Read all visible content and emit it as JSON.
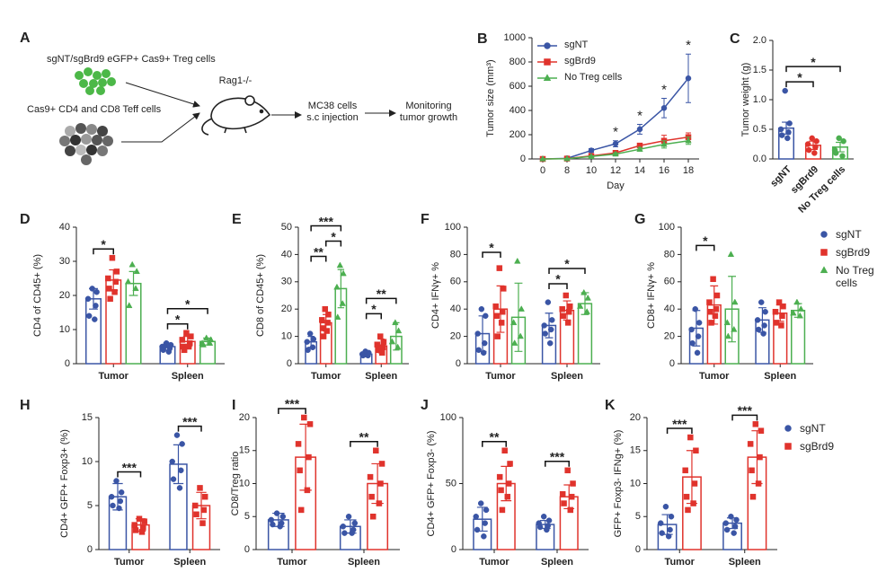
{
  "diagram": {
    "panel": "A",
    "treg": "sgNT/sgBrd9 eGFP+ Cas9+ Treg cells",
    "teff": "Cas9+ CD4 and CD8 Teff cells",
    "host": "Rag1-/-",
    "injection": [
      "MC38 cells",
      "s.c injection"
    ],
    "readout": [
      "Monitoring",
      "tumor growth"
    ]
  },
  "chart_data": [
    {
      "panel": "B",
      "type": "line",
      "ylabel": "Tumor size (mm³)",
      "xlabel": "Day",
      "categories": [
        "0",
        "8",
        "10",
        "12",
        "14",
        "16",
        "18"
      ],
      "ylim": [
        0,
        1000
      ],
      "yticks": [
        0,
        200,
        400,
        600,
        800,
        1000
      ],
      "legend": "upper left",
      "series": [
        {
          "name": "sgNT",
          "color": "#3a55a5",
          "marker": "circle",
          "values": [
            0,
            5,
            70,
            125,
            245,
            420,
            665
          ],
          "errors": [
            0,
            5,
            15,
            25,
            40,
            80,
            200
          ]
        },
        {
          "name": "sgBrd9",
          "color": "#e0332c",
          "marker": "square",
          "values": [
            0,
            3,
            25,
            50,
            110,
            150,
            180
          ],
          "errors": [
            0,
            3,
            8,
            10,
            20,
            45,
            35
          ]
        },
        {
          "name": "No Treg cells",
          "color": "#4caf50",
          "marker": "triangle",
          "values": [
            0,
            2,
            20,
            40,
            80,
            120,
            150
          ],
          "errors": [
            0,
            2,
            6,
            10,
            15,
            30,
            30
          ]
        }
      ],
      "annotations": [
        {
          "category": "12",
          "label": "*"
        },
        {
          "category": "14",
          "label": "*"
        },
        {
          "category": "16",
          "label": "*"
        },
        {
          "category": "18",
          "label": "*"
        }
      ]
    },
    {
      "panel": "C",
      "type": "bar",
      "ylabel": "Tumor weight (g)",
      "categories": [
        "sgNT",
        "sgBrd9",
        "No Treg cells"
      ],
      "colors": [
        "#3a55a5",
        "#e0332c",
        "#4caf50"
      ],
      "ylim": [
        0,
        2
      ],
      "yticks": [
        {
          "value": 0,
          "label": "0.0"
        },
        {
          "value": 0.5,
          "label": "0.5"
        },
        {
          "value": 1,
          "label": "1.0"
        },
        {
          "value": 1.5,
          "label": "1.5"
        },
        {
          "value": 2,
          "label": "2.0"
        }
      ],
      "values": [
        0.52,
        0.23,
        0.2
      ],
      "errors": [
        0.1,
        0.07,
        0.08
      ],
      "points": [
        [
          1.15,
          0.6,
          0.5,
          0.45,
          0.4,
          0.35
        ],
        [
          0.35,
          0.3,
          0.25,
          0.2,
          0.15,
          0.1
        ],
        [
          0.35,
          0.3,
          0.15,
          0.05,
          0.1
        ]
      ],
      "brackets": [
        {
          "from": "sgNT",
          "to": "sgBrd9",
          "label": "*"
        },
        {
          "from": "sgNT",
          "to": "No Treg cells",
          "label": "*"
        }
      ]
    },
    {
      "panel": "D",
      "type": "bar",
      "ylabel": "CD4 of CD45+ (%)",
      "categories": [
        "Tumor",
        "Spleen"
      ],
      "ylim": [
        0,
        40
      ],
      "yticks": [
        0,
        10,
        20,
        30,
        40
      ],
      "series": [
        {
          "name": "sgNT",
          "color": "#3a55a5",
          "marker": "circle",
          "values": [
            19,
            5
          ],
          "errors": [
            3,
            1
          ],
          "points": [
            [
              22,
              21,
              19,
              17,
              14,
              13
            ],
            [
              6,
              5.5,
              5,
              4.5,
              4,
              3.5,
              5
            ]
          ]
        },
        {
          "name": "sgBrd9",
          "color": "#e0332c",
          "marker": "square",
          "values": [
            24.5,
            6.5
          ],
          "errors": [
            3,
            1.5
          ],
          "points": [
            [
              31,
              27,
              25,
              24,
              22,
              21,
              19
            ],
            [
              9,
              8,
              7,
              6,
              5,
              5,
              4
            ]
          ]
        },
        {
          "name": "No Treg cells",
          "color": "#4caf50",
          "marker": "triangle",
          "values": [
            23.5,
            6.5
          ],
          "errors": [
            3.5,
            1
          ],
          "points": [
            [
              29,
              27,
              24,
              22,
              17
            ],
            [
              7.5,
              7,
              6,
              6,
              5.5
            ]
          ]
        }
      ],
      "brackets": [
        {
          "category": "Tumor",
          "from": "sgNT",
          "to": "sgBrd9",
          "label": "*"
        },
        {
          "category": "Spleen",
          "from": "sgNT",
          "to": "sgBrd9",
          "label": "*"
        },
        {
          "category": "Spleen",
          "from": "sgNT",
          "to": "No Treg cells",
          "label": "*"
        }
      ]
    },
    {
      "panel": "E",
      "type": "bar",
      "ylabel": "CD8 of CD45+ (%)",
      "categories": [
        "Tumor",
        "Spleen"
      ],
      "ylim": [
        0,
        50
      ],
      "yticks": [
        0,
        10,
        20,
        30,
        40,
        50
      ],
      "series": [
        {
          "name": "sgNT",
          "color": "#3a55a5",
          "marker": "circle",
          "values": [
            8,
            3.5
          ],
          "errors": [
            2,
            1
          ],
          "points": [
            [
              11,
              9,
              8,
              6,
              5
            ],
            [
              4.5,
              4,
              3.5,
              3,
              3
            ]
          ]
        },
        {
          "name": "sgBrd9",
          "color": "#e0332c",
          "marker": "square",
          "values": [
            15,
            6.5
          ],
          "errors": [
            3,
            2.5
          ],
          "points": [
            [
              20,
              18,
              16,
              15,
              13,
              12,
              10
            ],
            [
              10,
              8,
              7,
              6,
              5,
              4
            ]
          ]
        },
        {
          "name": "No Treg cells",
          "color": "#4caf50",
          "marker": "triangle",
          "values": [
            27.5,
            10
          ],
          "errors": [
            7,
            5
          ],
          "points": [
            [
              36,
              33,
              28,
              22,
              17
            ],
            [
              15,
              12,
              8,
              6
            ]
          ]
        }
      ],
      "brackets": [
        {
          "category": "Tumor",
          "from": "sgNT",
          "to": "sgBrd9",
          "label": "**"
        },
        {
          "category": "Tumor",
          "from": "sgBrd9",
          "to": "No Treg cells",
          "label": "*"
        },
        {
          "category": "Tumor",
          "from": "sgNT",
          "to": "No Treg cells",
          "label": "***"
        },
        {
          "category": "Spleen",
          "from": "sgNT",
          "to": "sgBrd9",
          "label": "*"
        },
        {
          "category": "Spleen",
          "from": "sgNT",
          "to": "No Treg cells",
          "label": "**"
        }
      ]
    },
    {
      "panel": "F",
      "type": "bar",
      "ylabel": "CD4+ IFNγ+ %",
      "categories": [
        "Tumor",
        "Spleen"
      ],
      "ylim": [
        0,
        100
      ],
      "yticks": [
        0,
        20,
        40,
        60,
        80,
        100
      ],
      "series": [
        {
          "name": "sgNT",
          "color": "#3a55a5",
          "marker": "circle",
          "values": [
            22,
            28
          ],
          "errors": [
            13,
            9
          ],
          "points": [
            [
              40,
              35,
              22,
              15,
              10,
              8
            ],
            [
              45,
              32,
              28,
              25,
              22,
              15
            ]
          ]
        },
        {
          "name": "sgBrd9",
          "color": "#e0332c",
          "marker": "square",
          "values": [
            40,
            39
          ],
          "errors": [
            17,
            7
          ],
          "points": [
            [
              70,
              55,
              42,
              38,
              35,
              30,
              20
            ],
            [
              50,
              42,
              40,
              38,
              35,
              30
            ]
          ]
        },
        {
          "name": "No Treg cells",
          "color": "#4caf50",
          "marker": "triangle",
          "values": [
            34,
            44
          ],
          "errors": [
            25,
            8
          ],
          "points": [
            [
              75,
              40,
              30,
              20,
              15
            ],
            [
              52,
              48,
              42,
              38
            ]
          ]
        }
      ],
      "brackets": [
        {
          "category": "Tumor",
          "from": "sgNT",
          "to": "sgBrd9",
          "label": "*"
        },
        {
          "category": "Spleen",
          "from": "sgNT",
          "to": "sgBrd9",
          "label": "*"
        },
        {
          "category": "Spleen",
          "from": "sgNT",
          "to": "No Treg cells",
          "label": "*"
        }
      ]
    },
    {
      "panel": "G",
      "type": "bar",
      "ylabel": "CD8+ IFNγ+ %",
      "categories": [
        "Tumor",
        "Spleen"
      ],
      "ylim": [
        0,
        100
      ],
      "yticks": [
        0,
        20,
        40,
        60,
        80,
        100
      ],
      "legend": "right",
      "series": [
        {
          "name": "sgNT",
          "color": "#3a55a5",
          "marker": "circle",
          "values": [
            26,
            32
          ],
          "errors": [
            13,
            9
          ],
          "points": [
            [
              40,
              30,
              25,
              20,
              15,
              8
            ],
            [
              45,
              38,
              32,
              28,
              25,
              22
            ]
          ]
        },
        {
          "name": "sgBrd9",
          "color": "#e0332c",
          "marker": "square",
          "values": [
            43,
            37
          ],
          "errors": [
            14,
            6
          ],
          "points": [
            [
              62,
              50,
              45,
              40,
              38,
              35,
              30
            ],
            [
              45,
              42,
              38,
              35,
              30,
              28
            ]
          ]
        },
        {
          "name": "No Treg cells",
          "color": "#4caf50",
          "marker": "triangle",
          "values": [
            40,
            39
          ],
          "errors": [
            24,
            5
          ],
          "points": [
            [
              80,
              45,
              30,
              25,
              20
            ],
            [
              45,
              40,
              37,
              35
            ]
          ]
        }
      ],
      "brackets": [
        {
          "category": "Tumor",
          "from": "sgNT",
          "to": "sgBrd9",
          "label": "*"
        }
      ]
    },
    {
      "panel": "H",
      "type": "bar",
      "ylabel": "CD4+ GFP+ Foxp3+ (%)",
      "categories": [
        "Tumor",
        "Spleen"
      ],
      "ylim": [
        0,
        15
      ],
      "yticks": [
        0,
        5,
        10,
        15
      ],
      "series": [
        {
          "name": "sgNT",
          "color": "#3a55a5",
          "marker": "circle",
          "values": [
            6,
            9.7
          ],
          "errors": [
            1.5,
            2.2
          ],
          "points": [
            [
              7.8,
              6.5,
              6,
              5.5,
              5,
              4.7
            ],
            [
              13,
              12,
              10,
              9,
              8,
              7
            ]
          ]
        },
        {
          "name": "sgBrd9",
          "color": "#e0332c",
          "marker": "square",
          "values": [
            2.8,
            5
          ],
          "errors": [
            0.7,
            1.5
          ],
          "points": [
            [
              3.5,
              3.2,
              2.8,
              2.5,
              2.2,
              2
            ],
            [
              7,
              6,
              5,
              4.5,
              4,
              3
            ]
          ]
        }
      ],
      "brackets": [
        {
          "category": "Tumor",
          "from": "sgNT",
          "to": "sgBrd9",
          "label": "***"
        },
        {
          "category": "Spleen",
          "from": "sgNT",
          "to": "sgBrd9",
          "label": "***"
        }
      ]
    },
    {
      "panel": "I",
      "type": "bar",
      "ylabel": "CD8/Treg ratio",
      "categories": [
        "Tumor",
        "Spleen"
      ],
      "ylim": [
        0,
        20
      ],
      "yticks": [
        0,
        5,
        10,
        15,
        20
      ],
      "series": [
        {
          "name": "sgNT",
          "color": "#3a55a5",
          "marker": "circle",
          "values": [
            4.5,
            3.5
          ],
          "errors": [
            1,
            1
          ],
          "points": [
            [
              5.5,
              5,
              4.5,
              4,
              3.8,
              3.5
            ],
            [
              5,
              4,
              3.5,
              3,
              2.5,
              2.5
            ]
          ]
        },
        {
          "name": "sgBrd9",
          "color": "#e0332c",
          "marker": "square",
          "values": [
            14,
            10
          ],
          "errors": [
            5,
            3
          ],
          "points": [
            [
              20,
              19,
              16,
              14,
              12,
              9,
              6
            ],
            [
              15,
              13,
              11,
              10,
              8,
              7,
              5
            ]
          ]
        }
      ],
      "brackets": [
        {
          "category": "Tumor",
          "from": "sgNT",
          "to": "sgBrd9",
          "label": "***"
        },
        {
          "category": "Spleen",
          "from": "sgNT",
          "to": "sgBrd9",
          "label": "**"
        }
      ]
    },
    {
      "panel": "J",
      "type": "bar",
      "ylabel": "CD4+ GFP+ Foxp3- (%)",
      "categories": [
        "Tumor",
        "Spleen"
      ],
      "ylim": [
        0,
        100
      ],
      "yticks": [
        0,
        50,
        100
      ],
      "series": [
        {
          "name": "sgNT",
          "color": "#3a55a5",
          "marker": "circle",
          "values": [
            23,
            19
          ],
          "errors": [
            9,
            3
          ],
          "points": [
            [
              35,
              30,
              25,
              20,
              15,
              10
            ],
            [
              25,
              22,
              20,
              18,
              17,
              15
            ]
          ]
        },
        {
          "name": "sgBrd9",
          "color": "#e0332c",
          "marker": "square",
          "values": [
            50,
            40
          ],
          "errors": [
            13,
            9
          ],
          "points": [
            [
              75,
              65,
              55,
              50,
              45,
              40,
              30
            ],
            [
              60,
              50,
              42,
              40,
              35,
              30
            ]
          ]
        }
      ],
      "brackets": [
        {
          "category": "Tumor",
          "from": "sgNT",
          "to": "sgBrd9",
          "label": "**"
        },
        {
          "category": "Spleen",
          "from": "sgNT",
          "to": "sgBrd9",
          "label": "***"
        }
      ]
    },
    {
      "panel": "K",
      "type": "bar",
      "ylabel": "GFP+ Foxp3- IFNg+ (%)",
      "categories": [
        "Tumor",
        "Spleen"
      ],
      "ylim": [
        0,
        20
      ],
      "yticks": [
        0,
        5,
        10,
        15,
        20
      ],
      "legend": "right",
      "series": [
        {
          "name": "sgNT",
          "color": "#3a55a5",
          "marker": "circle",
          "values": [
            3.8,
            4
          ],
          "errors": [
            1.5,
            0.8
          ],
          "points": [
            [
              6.5,
              5,
              4,
              3,
              2.5,
              2
            ],
            [
              5,
              4.5,
              4,
              3.5,
              3,
              2.5
            ]
          ]
        },
        {
          "name": "sgBrd9",
          "color": "#e0332c",
          "marker": "square",
          "values": [
            11,
            14
          ],
          "errors": [
            4,
            4
          ],
          "points": [
            [
              17,
              15,
              12,
              10,
              8,
              7,
              6
            ],
            [
              19,
              18,
              16,
              14,
              12,
              10,
              8
            ]
          ]
        }
      ],
      "brackets": [
        {
          "category": "Tumor",
          "from": "sgNT",
          "to": "sgBrd9",
          "label": "***"
        },
        {
          "category": "Spleen",
          "from": "sgNT",
          "to": "sgBrd9",
          "label": "***"
        }
      ]
    }
  ]
}
